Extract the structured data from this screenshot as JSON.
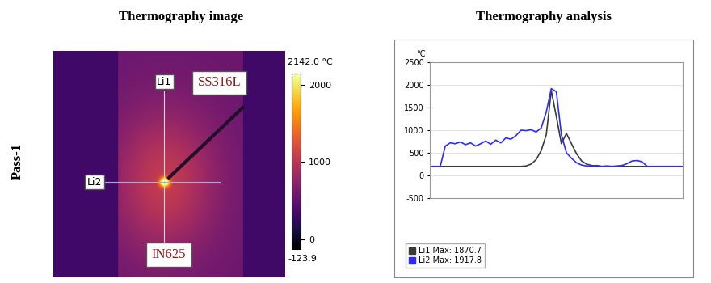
{
  "row_label": "Pass-1",
  "panel_titles": [
    "Thermography image",
    "Thermography analysis"
  ],
  "image": {
    "material_labels": [
      "SS316L",
      "IN625"
    ],
    "line_labels": [
      "Li1",
      "Li2"
    ],
    "colorbar": {
      "range": [
        -123.9,
        2142.0
      ],
      "ticks": [
        0,
        1000,
        2000
      ],
      "top_label": "2142.0 °C"
    }
  },
  "chart_data": {
    "type": "line",
    "ylabel": "°C",
    "x": [
      0,
      2,
      4,
      6,
      8,
      10,
      12,
      14,
      16,
      18,
      20,
      22,
      24,
      26,
      28,
      30,
      32,
      34,
      36,
      38,
      40,
      42,
      44,
      46,
      48,
      50,
      52,
      54,
      56,
      58,
      60,
      62,
      64,
      66,
      68,
      70,
      72,
      74,
      76,
      78,
      80,
      82,
      84,
      86,
      88,
      90,
      92,
      94,
      96,
      98,
      100
    ],
    "series": [
      {
        "name": "Li1 Max: 1870.7",
        "color": "#3a3a3a",
        "values": [
          200,
          200,
          200,
          200,
          200,
          200,
          200,
          200,
          200,
          200,
          200,
          200,
          200,
          200,
          200,
          200,
          200,
          200,
          200,
          210,
          250,
          350,
          550,
          900,
          1870.7,
          1300,
          700,
          930,
          700,
          480,
          320,
          250,
          220,
          210,
          200,
          200,
          200,
          200,
          200,
          200,
          200,
          200,
          200,
          200,
          200,
          200,
          200,
          200,
          200,
          200,
          200
        ]
      },
      {
        "name": "Li2 Max: 1917.8",
        "color": "#2a2aff",
        "values": [
          200,
          200,
          200,
          650,
          720,
          700,
          740,
          680,
          720,
          650,
          700,
          760,
          690,
          780,
          720,
          830,
          800,
          880,
          1000,
          990,
          1010,
          960,
          1050,
          1400,
          1917.8,
          1850,
          900,
          500,
          380,
          280,
          230,
          210,
          200,
          220,
          200,
          210,
          200,
          210,
          220,
          260,
          320,
          330,
          300,
          200,
          200,
          200,
          200,
          200,
          200,
          200,
          200
        ]
      }
    ],
    "xlim": [
      0,
      100
    ],
    "xticks": [],
    "ylim": [
      -500,
      2500
    ],
    "yticks": [
      -500,
      0,
      500,
      1000,
      1500,
      2000,
      2500
    ],
    "grid": true,
    "legend": "lower left",
    "tick_labels": "y"
  }
}
